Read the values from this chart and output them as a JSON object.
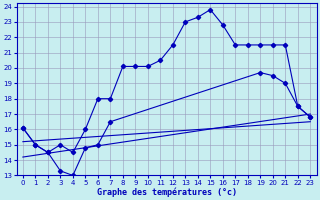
{
  "xlabel": "Graphe des températures (°c)",
  "bg_color": "#c8eef0",
  "line_color": "#0000bb",
  "grid_color": "#9999bb",
  "xlim": [
    -0.5,
    23.5
  ],
  "ylim": [
    13,
    24.2
  ],
  "xticks": [
    0,
    1,
    2,
    3,
    4,
    5,
    6,
    7,
    8,
    9,
    10,
    11,
    12,
    13,
    14,
    15,
    16,
    17,
    18,
    19,
    20,
    21,
    22,
    23
  ],
  "yticks": [
    13,
    14,
    15,
    16,
    17,
    18,
    19,
    20,
    21,
    22,
    23,
    24
  ],
  "line1_x": [
    0,
    1,
    2,
    3,
    4,
    5,
    6,
    7,
    8,
    9,
    10,
    11,
    12,
    13,
    14,
    15,
    16,
    17,
    18,
    19,
    20,
    21,
    22,
    23
  ],
  "line1_y": [
    16.1,
    15.0,
    14.5,
    15.0,
    14.5,
    16.0,
    18.0,
    18.0,
    20.1,
    20.1,
    20.1,
    20.5,
    21.5,
    23.0,
    23.3,
    23.8,
    22.8,
    21.5,
    21.5,
    21.5,
    21.5,
    21.5,
    17.5,
    16.8
  ],
  "line2_x": [
    0,
    1,
    2,
    3,
    4,
    5,
    6,
    7,
    19,
    20,
    21,
    22,
    23
  ],
  "line2_y": [
    16.1,
    15.0,
    14.5,
    13.3,
    13.0,
    14.8,
    15.0,
    16.5,
    19.7,
    19.5,
    19.0,
    17.5,
    16.8
  ],
  "line3_x": [
    0,
    23
  ],
  "line3_y": [
    14.2,
    17.0
  ],
  "line4_x": [
    0,
    23
  ],
  "line4_y": [
    15.2,
    16.5
  ]
}
